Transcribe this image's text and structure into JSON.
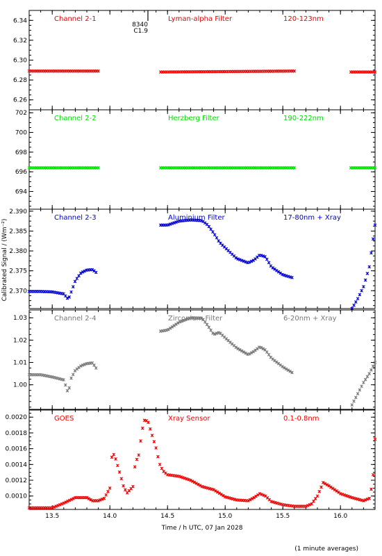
{
  "chart_data": {
    "type": "scatter",
    "xlabel": "Time / h UTC, 07 Jan 2028",
    "ylabel": "Calibrated Signal / (Wm⁻²)",
    "footnote": "(1 minute averages)",
    "xlim": [
      13.3,
      16.3
    ],
    "xticks": [
      "13.5",
      "14.0",
      "14.5",
      "15.0",
      "15.5",
      "16.0"
    ],
    "xtick_values": [
      13.5,
      14.0,
      14.5,
      15.0,
      15.5,
      16.0
    ],
    "event_marker": {
      "x": 14.33,
      "labels": [
        "8340",
        "C1.9"
      ]
    },
    "panels": [
      {
        "name": "Channel 2-1",
        "title": "Lyman-alpha Filter",
        "range": "120-123nm",
        "color": "#ee0000",
        "ylim": [
          6.25,
          6.35
        ],
        "yticks": [
          "6.26",
          "6.28",
          "6.30",
          "6.32",
          "6.34"
        ],
        "ytick_values": [
          6.26,
          6.28,
          6.3,
          6.32,
          6.34
        ],
        "segments": [
          {
            "x": [
              13.3,
              13.9
            ],
            "y": [
              6.289,
              6.289
            ]
          },
          {
            "x": [
              14.44,
              15.6
            ],
            "y": [
              6.288,
              6.289
            ]
          },
          {
            "x": [
              16.09,
              16.3
            ],
            "y": [
              6.288,
              6.288
            ]
          }
        ]
      },
      {
        "name": "Channel 2-2",
        "title": "Herzberg Filter",
        "range": "190-222nm",
        "color": "#00dd00",
        "ylim": [
          692.2,
          702.3
        ],
        "yticks": [
          "694",
          "696",
          "698",
          "700",
          "702"
        ],
        "ytick_values": [
          694,
          696,
          698,
          700,
          702
        ],
        "segments": [
          {
            "x": [
              13.3,
              13.9
            ],
            "y": [
              696.4,
              696.4
            ]
          },
          {
            "x": [
              14.44,
              15.6
            ],
            "y": [
              696.4,
              696.4
            ]
          },
          {
            "x": [
              16.09,
              16.3
            ],
            "y": [
              696.4,
              696.4
            ]
          }
        ]
      },
      {
        "name": "Channel 2-3",
        "title": "Aluminium Filter",
        "range": "17-80nm + Xray",
        "color": "#0000cc",
        "ylim": [
          2.3655,
          2.3905
        ],
        "yticks": [
          "2.370",
          "2.375",
          "2.380",
          "2.385",
          "2.390"
        ],
        "ytick_values": [
          2.37,
          2.375,
          2.38,
          2.385,
          2.39
        ],
        "segments": [
          {
            "x": [
              13.3,
              13.4,
              13.5,
              13.6,
              13.64,
              13.66,
              13.7,
              13.75,
              13.8,
              13.85,
              13.88
            ],
            "y": [
              2.3698,
              2.3698,
              2.3697,
              2.3692,
              2.3678,
              2.3693,
              2.3725,
              2.3745,
              2.3752,
              2.3753,
              2.3746
            ]
          },
          {
            "x": [
              14.44,
              14.5,
              14.6,
              14.7,
              14.8,
              14.85,
              14.9,
              14.95,
              15.0,
              15.1,
              15.2,
              15.25,
              15.3,
              15.35,
              15.4,
              15.5,
              15.58
            ],
            "y": [
              2.3865,
              2.3865,
              2.3875,
              2.3878,
              2.3876,
              2.3865,
              2.3845,
              2.3822,
              2.3808,
              2.3781,
              2.377,
              2.3777,
              2.379,
              2.3785,
              2.376,
              2.374,
              2.3733
            ]
          },
          {
            "x": [
              16.1,
              16.15,
              16.2,
              16.25,
              16.3
            ],
            "y": [
              2.3655,
              2.368,
              2.371,
              2.376,
              2.3865
            ]
          }
        ]
      },
      {
        "name": "Channel 2-4",
        "title": "Zirconium Filter",
        "range": "6-20nm + Xray",
        "color": "#777777",
        "ylim": [
          0.989,
          1.0335
        ],
        "yticks": [
          "1.00",
          "1.01",
          "1.02",
          "1.03"
        ],
        "ytick_values": [
          1.0,
          1.01,
          1.02,
          1.03
        ],
        "segments": [
          {
            "x": [
              13.3,
              13.4,
              13.5,
              13.6,
              13.64,
              13.66,
              13.7,
              13.75,
              13.8,
              13.85,
              13.88
            ],
            "y": [
              1.0045,
              1.0045,
              1.0035,
              1.0022,
              0.996,
              1.0025,
              1.0065,
              1.0085,
              1.0095,
              1.0098,
              1.0075
            ]
          },
          {
            "x": [
              14.44,
              14.5,
              14.6,
              14.7,
              14.8,
              14.85,
              14.9,
              14.95,
              15.0,
              15.1,
              15.2,
              15.25,
              15.3,
              15.35,
              15.4,
              15.5,
              15.58
            ],
            "y": [
              1.024,
              1.0245,
              1.028,
              1.03,
              1.0298,
              1.0265,
              1.0225,
              1.0235,
              1.021,
              1.0165,
              1.0135,
              1.015,
              1.017,
              1.0155,
              1.012,
              1.008,
              1.0055
            ]
          },
          {
            "x": [
              16.1,
              16.15,
              16.2,
              16.25,
              16.3
            ],
            "y": [
              0.991,
              0.996,
              1.001,
              1.005,
              1.01
            ]
          }
        ]
      },
      {
        "name": "GOES",
        "title": "Xray Sensor",
        "range": "0.1-0.8nm",
        "color": "#ee0000",
        "ylim": [
          0.00083,
          0.00209
        ],
        "yticks": [
          "0.0010",
          "0.0012",
          "0.0014",
          "0.0016",
          "0.0018",
          "0.0020"
        ],
        "ytick_values": [
          0.001,
          0.0012,
          0.0014,
          0.0016,
          0.0018,
          0.002
        ],
        "segments": [
          {
            "x": [
              13.3,
              13.5,
              13.6,
              13.7,
              13.8,
              13.85,
              13.9,
              13.95,
              14.0,
              14.02,
              14.05,
              14.1,
              14.12,
              14.15,
              14.2,
              14.22,
              14.25,
              14.28,
              14.3,
              14.33,
              14.36,
              14.4,
              14.43,
              14.46,
              14.5,
              14.6,
              14.7,
              14.8,
              14.9,
              15.0,
              15.1,
              15.2,
              15.25,
              15.3,
              15.35,
              15.4,
              15.5,
              15.6,
              15.7,
              15.75,
              15.8,
              15.85,
              15.9,
              16.0,
              16.1,
              16.2,
              16.25,
              16.28,
              16.3
            ],
            "y": [
              0.00085,
              0.00085,
              0.00091,
              0.00098,
              0.00098,
              0.00094,
              0.00094,
              0.00097,
              0.0011,
              0.00157,
              0.00147,
              0.00122,
              0.00111,
              0.00104,
              0.00112,
              0.00142,
              0.00152,
              0.00184,
              0.00196,
              0.00195,
              0.0018,
              0.00161,
              0.00141,
              0.00132,
              0.00127,
              0.00125,
              0.0012,
              0.00112,
              0.00108,
              0.00099,
              0.00095,
              0.00094,
              0.00098,
              0.00103,
              0.001,
              0.00093,
              0.00089,
              0.00087,
              0.00087,
              0.0009,
              0.001,
              0.00117,
              0.00113,
              0.00103,
              0.00098,
              0.00094,
              0.00097,
              0.00118,
              0.00172
            ]
          }
        ]
      }
    ]
  }
}
